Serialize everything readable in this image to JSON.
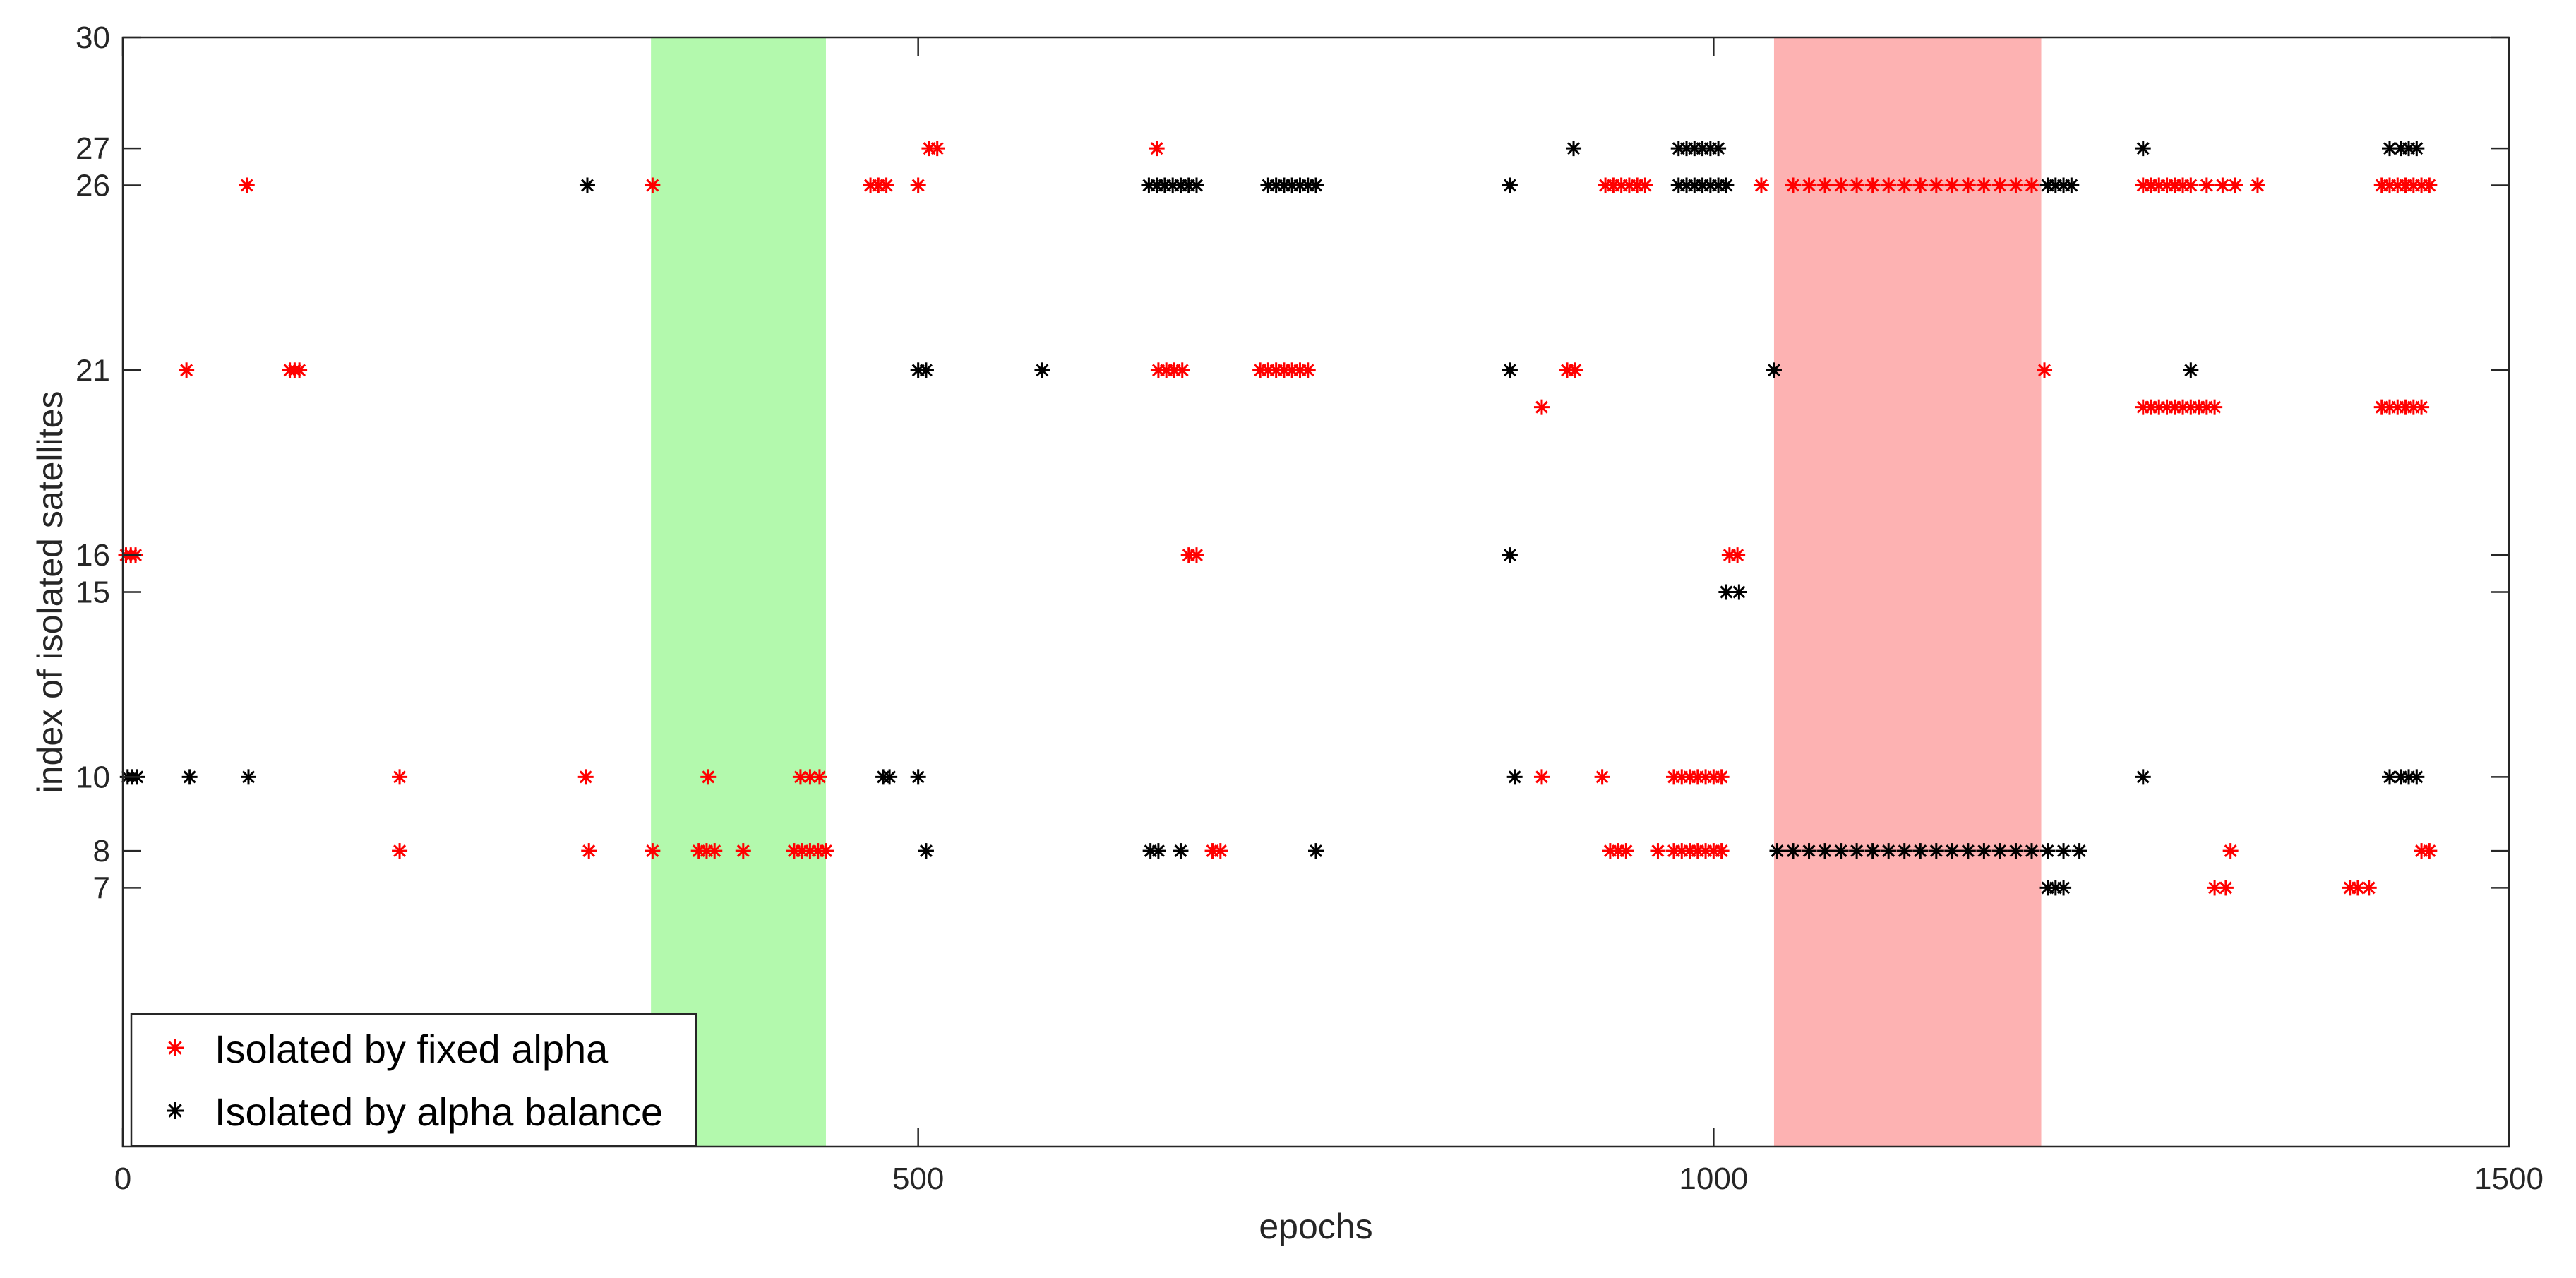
{
  "chart_data": {
    "type": "scatter",
    "xlabel": "epochs",
    "ylabel": "index of isolated satellites",
    "xlim": [
      0,
      1500
    ],
    "ylim": [
      0,
      30
    ],
    "xticks": [
      0,
      500,
      1000,
      1500
    ],
    "yticks": [
      7,
      8,
      10,
      15,
      16,
      21,
      26,
      27,
      30
    ],
    "legend_position": "bottom-left",
    "grid": false,
    "shaded_regions": [
      {
        "x_start": 332,
        "x_end": 442,
        "color": "#b3f9ad"
      },
      {
        "x_start": 1038,
        "x_end": 1206,
        "color": "#fdb2b2"
      }
    ],
    "series": [
      {
        "name": "Isolated by fixed alpha",
        "color": "#ff0000",
        "marker": "*",
        "points": [
          [
            2,
            16
          ],
          [
            5,
            16
          ],
          [
            8,
            16
          ],
          [
            40,
            21
          ],
          [
            78,
            26
          ],
          [
            105,
            21
          ],
          [
            108,
            21
          ],
          [
            111,
            21
          ],
          [
            174,
            10
          ],
          [
            174,
            8
          ],
          [
            291,
            10
          ],
          [
            293,
            8
          ],
          [
            333,
            26
          ],
          [
            333,
            8
          ],
          [
            362,
            8
          ],
          [
            367,
            8
          ],
          [
            372,
            8
          ],
          [
            368,
            10
          ],
          [
            390,
            8
          ],
          [
            422,
            8
          ],
          [
            427,
            8
          ],
          [
            432,
            8
          ],
          [
            437,
            8
          ],
          [
            442,
            8
          ],
          [
            426,
            10
          ],
          [
            432,
            10
          ],
          [
            438,
            10
          ],
          [
            470,
            26
          ],
          [
            475,
            26
          ],
          [
            480,
            26
          ],
          [
            500,
            26
          ],
          [
            507,
            27
          ],
          [
            512,
            27
          ],
          [
            650,
            27
          ],
          [
            651,
            21
          ],
          [
            656,
            21
          ],
          [
            661,
            21
          ],
          [
            666,
            21
          ],
          [
            670,
            16
          ],
          [
            675,
            16
          ],
          [
            685,
            8
          ],
          [
            690,
            8
          ],
          [
            715,
            21
          ],
          [
            720,
            21
          ],
          [
            725,
            21
          ],
          [
            730,
            21
          ],
          [
            735,
            21
          ],
          [
            740,
            21
          ],
          [
            745,
            21
          ],
          [
            892,
            20
          ],
          [
            892,
            10
          ],
          [
            908,
            21
          ],
          [
            913,
            21
          ],
          [
            932,
            26
          ],
          [
            937,
            26
          ],
          [
            942,
            26
          ],
          [
            947,
            26
          ],
          [
            952,
            26
          ],
          [
            957,
            26
          ],
          [
            930,
            10
          ],
          [
            935,
            8
          ],
          [
            940,
            8
          ],
          [
            945,
            8
          ],
          [
            965,
            8
          ],
          [
            975,
            10
          ],
          [
            980,
            10
          ],
          [
            985,
            10
          ],
          [
            990,
            10
          ],
          [
            995,
            10
          ],
          [
            1000,
            10
          ],
          [
            1005,
            10
          ],
          [
            975,
            8
          ],
          [
            980,
            8
          ],
          [
            985,
            8
          ],
          [
            990,
            8
          ],
          [
            995,
            8
          ],
          [
            1000,
            8
          ],
          [
            1005,
            8
          ],
          [
            1010,
            16
          ],
          [
            1015,
            16
          ],
          [
            1030,
            26
          ],
          [
            1050,
            26
          ],
          [
            1060,
            26
          ],
          [
            1070,
            26
          ],
          [
            1080,
            26
          ],
          [
            1090,
            26
          ],
          [
            1100,
            26
          ],
          [
            1110,
            26
          ],
          [
            1120,
            26
          ],
          [
            1130,
            26
          ],
          [
            1140,
            26
          ],
          [
            1150,
            26
          ],
          [
            1160,
            26
          ],
          [
            1170,
            26
          ],
          [
            1180,
            26
          ],
          [
            1190,
            26
          ],
          [
            1200,
            26
          ],
          [
            1208,
            21
          ],
          [
            1270,
            26
          ],
          [
            1275,
            26
          ],
          [
            1280,
            26
          ],
          [
            1285,
            26
          ],
          [
            1290,
            26
          ],
          [
            1295,
            26
          ],
          [
            1300,
            26
          ],
          [
            1310,
            26
          ],
          [
            1320,
            26
          ],
          [
            1328,
            26
          ],
          [
            1342,
            26
          ],
          [
            1270,
            20
          ],
          [
            1275,
            20
          ],
          [
            1280,
            20
          ],
          [
            1285,
            20
          ],
          [
            1290,
            20
          ],
          [
            1295,
            20
          ],
          [
            1300,
            20
          ],
          [
            1305,
            20
          ],
          [
            1310,
            20
          ],
          [
            1315,
            20
          ],
          [
            1315,
            7
          ],
          [
            1322,
            7
          ],
          [
            1325,
            8
          ],
          [
            1400,
            7
          ],
          [
            1405,
            7
          ],
          [
            1412,
            7
          ],
          [
            1420,
            26
          ],
          [
            1425,
            26
          ],
          [
            1430,
            26
          ],
          [
            1435,
            26
          ],
          [
            1440,
            26
          ],
          [
            1445,
            26
          ],
          [
            1450,
            26
          ],
          [
            1420,
            20
          ],
          [
            1425,
            20
          ],
          [
            1430,
            20
          ],
          [
            1435,
            20
          ],
          [
            1440,
            20
          ],
          [
            1445,
            20
          ],
          [
            1445,
            8
          ],
          [
            1450,
            8
          ]
        ]
      },
      {
        "name": "Isolated by alpha balance",
        "color": "#000000",
        "marker": "*",
        "points": [
          [
            3,
            10
          ],
          [
            6,
            10
          ],
          [
            9,
            10
          ],
          [
            42,
            10
          ],
          [
            79,
            10
          ],
          [
            292,
            26
          ],
          [
            478,
            10
          ],
          [
            482,
            10
          ],
          [
            500,
            10
          ],
          [
            500,
            21
          ],
          [
            505,
            21
          ],
          [
            505,
            8
          ],
          [
            578,
            21
          ],
          [
            645,
            26
          ],
          [
            650,
            26
          ],
          [
            655,
            26
          ],
          [
            660,
            26
          ],
          [
            665,
            26
          ],
          [
            670,
            26
          ],
          [
            675,
            26
          ],
          [
            646,
            8
          ],
          [
            651,
            8
          ],
          [
            665,
            8
          ],
          [
            720,
            26
          ],
          [
            725,
            26
          ],
          [
            730,
            26
          ],
          [
            735,
            26
          ],
          [
            740,
            26
          ],
          [
            745,
            26
          ],
          [
            750,
            26
          ],
          [
            750,
            8
          ],
          [
            872,
            26
          ],
          [
            872,
            21
          ],
          [
            872,
            16
          ],
          [
            875,
            10
          ],
          [
            912,
            27
          ],
          [
            978,
            27
          ],
          [
            983,
            27
          ],
          [
            988,
            27
          ],
          [
            993,
            27
          ],
          [
            998,
            27
          ],
          [
            1003,
            27
          ],
          [
            978,
            26
          ],
          [
            983,
            26
          ],
          [
            988,
            26
          ],
          [
            993,
            26
          ],
          [
            998,
            26
          ],
          [
            1003,
            26
          ],
          [
            1008,
            26
          ],
          [
            1008,
            15
          ],
          [
            1016,
            15
          ],
          [
            1038,
            21
          ],
          [
            1040,
            8
          ],
          [
            1050,
            8
          ],
          [
            1060,
            8
          ],
          [
            1070,
            8
          ],
          [
            1080,
            8
          ],
          [
            1090,
            8
          ],
          [
            1100,
            8
          ],
          [
            1110,
            8
          ],
          [
            1120,
            8
          ],
          [
            1130,
            8
          ],
          [
            1140,
            8
          ],
          [
            1150,
            8
          ],
          [
            1160,
            8
          ],
          [
            1170,
            8
          ],
          [
            1180,
            8
          ],
          [
            1190,
            8
          ],
          [
            1200,
            8
          ],
          [
            1210,
            8
          ],
          [
            1220,
            8
          ],
          [
            1230,
            8
          ],
          [
            1210,
            26
          ],
          [
            1215,
            26
          ],
          [
            1220,
            26
          ],
          [
            1225,
            26
          ],
          [
            1210,
            7
          ],
          [
            1215,
            7
          ],
          [
            1220,
            7
          ],
          [
            1270,
            27
          ],
          [
            1270,
            10
          ],
          [
            1300,
            21
          ],
          [
            1425,
            27
          ],
          [
            1432,
            27
          ],
          [
            1437,
            27
          ],
          [
            1442,
            27
          ],
          [
            1425,
            10
          ],
          [
            1432,
            10
          ],
          [
            1437,
            10
          ],
          [
            1442,
            10
          ]
        ]
      }
    ]
  }
}
